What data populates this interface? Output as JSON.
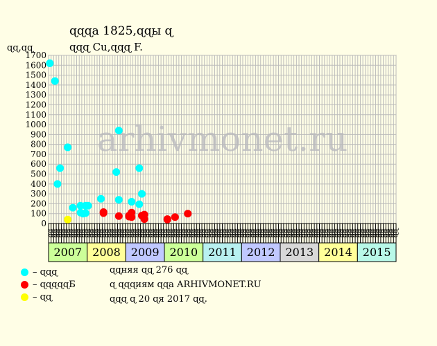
{
  "title": "ɋɋɋa 1825,ɋɋы ɋ",
  "subtitle": "ɋɋɋ Cu,ɋɋɋ F.",
  "y_unit": "ɋɋ,ɋɋ",
  "watermark": "arhivmonet.ru",
  "legend": [
    {
      "color": "#00ffff",
      "label": "– ɋɋɋ"
    },
    {
      "color": "#ff0000",
      "label": "– ɋɋɋɋɋБ"
    },
    {
      "color": "#ffff00",
      "label": "– ɋɋ"
    }
  ],
  "info": [
    "ɋɋняя ɋɋ 276 ɋɋ",
    "ɋ ɋɋɋиям ɋɋa ARHIVMONET.RU",
    "ɋɋɋ ɋ 20 ɋя 2017 ɋɋ."
  ],
  "chart_data": {
    "type": "scatter",
    "ylim": [
      0,
      1700
    ],
    "yticks": [
      0,
      100,
      200,
      300,
      400,
      500,
      600,
      700,
      800,
      900,
      1000,
      1100,
      1200,
      1300,
      1400,
      1500,
      1600,
      1700
    ],
    "grid": true,
    "month_labels": [
      "ɋɋ",
      "ɋɋ",
      "ɋɋ",
      "ɋɋ",
      "ɋɋ",
      "ɋɋ",
      "ɋɋ",
      "ɋɋ",
      "ɋɋ",
      "ɋɋ",
      "ɋɋ",
      "ɋɋ",
      "ɋɋ",
      "ɋɋ",
      "ɋɋ",
      "ɋɋ",
      "ɋɋ",
      "ɋɋ",
      "ɋɋ",
      "ɋɋ",
      "ɋɋ",
      "ɋɋ",
      "ɋɋ",
      "ɋɋ",
      "ɋɋ",
      "ɋɋ",
      "ɋɋ",
      "ɋɋ",
      "ɋɋ",
      "ɋɋ",
      "ɋɋ",
      "ɋɋ",
      "ɋɋ",
      "ɋɋ",
      "ɋɋ",
      "ɋɋ",
      "ɋɋ",
      "ɋɋ",
      "ɋɋ",
      "ɋɋ",
      "ɋɋ",
      "ɋɋ",
      "ɋɋ",
      "ɋɋ",
      "ɋɋ",
      "ɋɋ",
      "ɋɋ",
      "ɋɋ",
      "ɋɋ",
      "ɋɋ",
      "ɋɋ",
      "ɋɋ",
      "ɋɋ",
      "ɋɋ",
      "ɋɋ",
      "ɋɋ",
      "ɋɋ",
      "ɋɋ",
      "ɋɋ",
      "ɋɋ",
      "ɋɋ",
      "ɋɋ",
      "ɋɋ",
      "ɋɋ",
      "ɋɋ",
      "ɋɋ",
      "ɋɋ",
      "ɋɋ",
      "ɋɋ",
      "ɋɋ",
      "ɋɋ",
      "ɋɋ",
      "ɋɋ",
      "ɋɋ",
      "ɋɋ",
      "ɋɋ",
      "ɋɋ",
      "ɋɋ",
      "ɋɋ",
      "ɋɋ",
      "ɋɋ",
      "ɋɋ",
      "ɋɋ",
      "ɋɋ",
      "ɋɋ",
      "ɋɋ",
      "ɋɋ",
      "ɋɋ",
      "ɋɋ",
      "ɋɋ",
      "ɋɋ",
      "ɋɋ",
      "ɋɋ",
      "ɋɋ",
      "ɋɋ",
      "ɋɋ",
      "ɋɋ",
      "ɋɋ",
      "ɋɋ",
      "ɋɋ",
      "ɋɋ",
      "ɋɋ",
      "ɋɋ",
      "ɋɋ",
      "ɋɋ",
      "ɋɋ",
      "ɋɋ",
      "ɋɋ",
      "ɋɋ",
      "ɋɋ",
      "ɋɋ",
      "ɋɋ",
      "ɋɋ",
      "ɋɋ",
      "ɋɋ",
      "ɋɋ",
      "ɋɋ",
      "ɋɋ",
      "ɋɋ",
      "ɋɋ",
      "ɋɋ",
      "ɋɋ",
      "ɋɋ",
      "ɋɋ",
      "ɋɋ",
      "ɋɋ",
      "ɋɋ",
      "ɋɋ",
      "ɋɋ",
      "ɋɋ",
      "ɋɋ",
      "ɋɋ",
      "ɋɋ",
      "ɋɋ",
      "ɋɋ",
      "ɋɋ"
    ],
    "years": [
      {
        "label": "2007",
        "color": "#ccff99"
      },
      {
        "label": "2008",
        "color": "#ffff99"
      },
      {
        "label": "2009",
        "color": "#c0c8ff"
      },
      {
        "label": "2010",
        "color": "#ccff99"
      },
      {
        "label": "2011",
        "color": "#b8f0f0"
      },
      {
        "label": "2012",
        "color": "#c0c8ff"
      },
      {
        "label": "2013",
        "color": "#d8d8d8"
      },
      {
        "label": "2014",
        "color": "#ffff99"
      },
      {
        "label": "2015",
        "color": "#b8f8e8"
      }
    ],
    "series": [
      {
        "color": "#00ffff",
        "points": [
          {
            "x": 0,
            "y": 1620
          },
          {
            "x": 2,
            "y": 1440
          },
          {
            "x": 3,
            "y": 400
          },
          {
            "x": 4,
            "y": 560
          },
          {
            "x": 7,
            "y": 770
          },
          {
            "x": 9,
            "y": 160
          },
          {
            "x": 12,
            "y": 110
          },
          {
            "x": 12,
            "y": 180
          },
          {
            "x": 13,
            "y": 100
          },
          {
            "x": 14,
            "y": 180
          },
          {
            "x": 14,
            "y": 105
          },
          {
            "x": 15,
            "y": 180
          },
          {
            "x": 20,
            "y": 250
          },
          {
            "x": 26,
            "y": 520
          },
          {
            "x": 27,
            "y": 940
          },
          {
            "x": 27,
            "y": 240
          },
          {
            "x": 32,
            "y": 220
          },
          {
            "x": 35,
            "y": 560
          },
          {
            "x": 35,
            "y": 195
          },
          {
            "x": 36,
            "y": 300
          }
        ]
      },
      {
        "color": "#ff0000",
        "points": [
          {
            "x": 21,
            "y": 115
          },
          {
            "x": 21,
            "y": 105
          },
          {
            "x": 27,
            "y": 75
          },
          {
            "x": 31,
            "y": 80
          },
          {
            "x": 31,
            "y": 70
          },
          {
            "x": 32,
            "y": 110
          },
          {
            "x": 32,
            "y": 65
          },
          {
            "x": 36,
            "y": 80
          },
          {
            "x": 37,
            "y": 90
          },
          {
            "x": 37,
            "y": 45
          },
          {
            "x": 46,
            "y": 40
          },
          {
            "x": 46,
            "y": 45
          },
          {
            "x": 49,
            "y": 65
          },
          {
            "x": 54,
            "y": 100
          }
        ]
      },
      {
        "color": "#ffff00",
        "points": [
          {
            "x": 7,
            "y": 40
          }
        ]
      }
    ]
  }
}
